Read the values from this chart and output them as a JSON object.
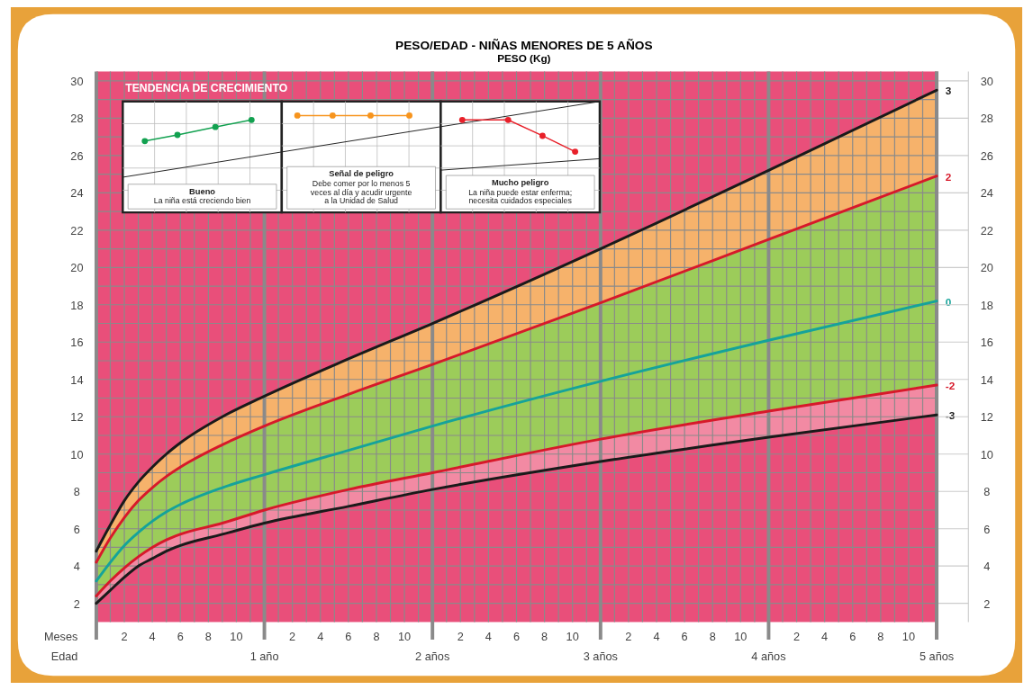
{
  "chart_data": {
    "type": "line",
    "title": "PESO/EDAD - NIÑAS MENORES DE 5 AÑOS",
    "subtitle": "PESO (Kg)",
    "xlabel": "Meses",
    "x": [
      0,
      0.0833,
      0.1667,
      0.25,
      0.3333,
      0.4167,
      0.5,
      0.75,
      1,
      1.5,
      2,
      3,
      4,
      5
    ],
    "series": [
      {
        "name": "3",
        "color": "#1a1a1a",
        "values": [
          4.8,
          6.2,
          7.5,
          8.5,
          9.3,
          10.0,
          10.6,
          12.0,
          13.1,
          15.1,
          17.0,
          21.0,
          25.2,
          29.5
        ]
      },
      {
        "name": "2",
        "color": "#d7192a",
        "values": [
          4.2,
          5.5,
          6.6,
          7.5,
          8.2,
          8.8,
          9.3,
          10.5,
          11.5,
          13.2,
          14.8,
          18.1,
          21.5,
          24.9
        ],
        "lower": [
          4.2,
          5.5,
          6.6,
          7.5,
          8.2,
          8.8,
          9.3,
          10.5,
          11.5,
          13.2,
          14.8,
          18.1,
          21.5,
          24.9
        ],
        "upper": [
          4.8,
          6.2,
          7.5,
          8.5,
          9.3,
          10.0,
          10.6,
          12.0,
          13.1,
          15.1,
          17.0,
          21.0,
          25.2,
          29.5
        ]
      },
      {
        "name": "0",
        "color": "#15a39a",
        "values": [
          3.2,
          4.2,
          5.1,
          5.8,
          6.4,
          6.9,
          7.3,
          8.2,
          8.9,
          10.2,
          11.5,
          13.9,
          16.1,
          18.2
        ],
        "lower": [
          2.4,
          3.2,
          3.9,
          4.5,
          5.0,
          5.4,
          5.7,
          6.3,
          7.0,
          8.1,
          9.0,
          10.8,
          12.3,
          13.7
        ],
        "upper": [
          4.2,
          5.5,
          6.6,
          7.5,
          8.2,
          8.8,
          9.3,
          10.5,
          11.5,
          13.2,
          14.8,
          18.1,
          21.5,
          24.9
        ]
      },
      {
        "name": "-2",
        "color": "#d7192a",
        "values": [
          2.4,
          3.2,
          3.9,
          4.5,
          5.0,
          5.4,
          5.7,
          6.3,
          7.0,
          8.1,
          9.0,
          10.8,
          12.3,
          13.7
        ],
        "lower": [
          2.0,
          2.7,
          3.4,
          4.0,
          4.4,
          4.8,
          5.1,
          5.7,
          6.3,
          7.2,
          8.1,
          9.6,
          10.9,
          12.1
        ],
        "upper": [
          2.4,
          3.2,
          3.9,
          4.5,
          5.0,
          5.4,
          5.7,
          6.3,
          7.0,
          8.1,
          9.0,
          10.8,
          12.3,
          13.7
        ]
      },
      {
        "name": "-3",
        "color": "#1a1a1a",
        "values": [
          2.0,
          2.7,
          3.4,
          4.0,
          4.4,
          4.8,
          5.1,
          5.7,
          6.3,
          7.2,
          8.1,
          9.6,
          10.9,
          12.1
        ]
      }
    ],
    "xlim": [
      0,
      5
    ],
    "xticks": [
      {
        "value": 0.0833,
        "label": null
      },
      {
        "value": 0.1667,
        "label": null
      },
      {
        "value": 0.25,
        "label": null
      },
      {
        "value": 0.3333,
        "label": null
      },
      {
        "value": 0.4167,
        "label": null
      },
      {
        "value": 0.5,
        "label": null
      },
      {
        "value": 0.5833,
        "label": null
      },
      {
        "value": 0.6667,
        "label": null
      },
      {
        "value": 0.75,
        "label": null
      },
      {
        "value": 0.8333,
        "label": null
      },
      {
        "value": 0.9167,
        "label": null
      },
      {
        "value": 1,
        "label": "1 año"
      },
      {
        "value": 1.0833,
        "label": null
      },
      {
        "value": 1.1667,
        "label": null
      },
      {
        "value": 1.25,
        "label": null
      },
      {
        "value": 1.3333,
        "label": null
      },
      {
        "value": 1.4167,
        "label": null
      },
      {
        "value": 1.5,
        "label": null
      },
      {
        "value": 1.5833,
        "label": null
      },
      {
        "value": 1.6667,
        "label": null
      },
      {
        "value": 1.75,
        "label": null
      },
      {
        "value": 1.8333,
        "label": null
      },
      {
        "value": 1.9167,
        "label": null
      },
      {
        "value": 2,
        "label": "2 años"
      },
      {
        "value": 2.0833,
        "label": null
      },
      {
        "value": 2.1667,
        "label": null
      },
      {
        "value": 2.25,
        "label": null
      },
      {
        "value": 2.3333,
        "label": null
      },
      {
        "value": 2.4167,
        "label": null
      },
      {
        "value": 2.5,
        "label": null
      },
      {
        "value": 2.5833,
        "label": null
      },
      {
        "value": 2.6667,
        "label": null
      },
      {
        "value": 2.75,
        "label": null
      },
      {
        "value": 2.8333,
        "label": null
      },
      {
        "value": 2.9167,
        "label": null
      },
      {
        "value": 3,
        "label": "3 años"
      },
      {
        "value": 3.0833,
        "label": null
      },
      {
        "value": 3.1667,
        "label": null
      },
      {
        "value": 3.25,
        "label": null
      },
      {
        "value": 3.3333,
        "label": null
      },
      {
        "value": 3.4167,
        "label": null
      },
      {
        "value": 3.5,
        "label": null
      },
      {
        "value": 3.5833,
        "label": null
      },
      {
        "value": 3.6667,
        "label": null
      },
      {
        "value": 3.75,
        "label": null
      },
      {
        "value": 3.8333,
        "label": null
      },
      {
        "value": 3.9167,
        "label": null
      },
      {
        "value": 4,
        "label": "4 años"
      },
      {
        "value": 4.0833,
        "label": null
      },
      {
        "value": 4.1667,
        "label": null
      },
      {
        "value": 4.25,
        "label": null
      },
      {
        "value": 4.3333,
        "label": null
      },
      {
        "value": 4.4167,
        "label": null
      },
      {
        "value": 4.5,
        "label": null
      },
      {
        "value": 4.5833,
        "label": null
      },
      {
        "value": 4.6667,
        "label": null
      },
      {
        "value": 4.75,
        "label": null
      },
      {
        "value": 4.8333,
        "label": null
      },
      {
        "value": 4.9167,
        "label": null
      },
      {
        "value": 5,
        "label": "5 años"
      }
    ],
    "ylim": [
      1,
      30.5
    ],
    "yticks": [
      2,
      {
        "value": 3,
        "label": null
      },
      4,
      {
        "value": 5,
        "label": null
      },
      6,
      {
        "value": 7,
        "label": null
      },
      8,
      {
        "value": 9,
        "label": null
      },
      10,
      {
        "value": 11,
        "label": null
      },
      12,
      {
        "value": 13,
        "label": null
      },
      14,
      {
        "value": 15,
        "label": null
      },
      16,
      {
        "value": 17,
        "label": null
      },
      18,
      {
        "value": 19,
        "label": null
      },
      20,
      {
        "value": 21,
        "label": null
      },
      22,
      {
        "value": 23,
        "label": null
      },
      24,
      {
        "value": 25,
        "label": null
      },
      26,
      {
        "value": 27,
        "label": null
      },
      28,
      {
        "value": 29,
        "label": null
      },
      30
    ],
    "y2lim": [
      1,
      30.5
    ],
    "y2ticks": [
      2,
      4,
      6,
      8,
      10,
      12,
      14,
      16,
      18,
      20,
      22,
      24,
      26,
      28,
      30
    ],
    "grid": true,
    "annotations": [
      "TENDENCIA DE CRECIMIENTO",
      "Bueno",
      "La niña está creciendo bien",
      "Señal de peligro",
      "Debe comer por lo menos 5 veces al día y acudir urgente a la Unidad de Salud",
      "Mucho peligro",
      "La niña puede estar enferma; necesita cuidados especiales",
      "Edad",
      "2",
      "4",
      "6",
      "8",
      "10",
      "2",
      "4",
      "6",
      "8",
      "10",
      "2",
      "4",
      "6",
      "8",
      "10",
      "2",
      "4",
      "6",
      "8",
      "10",
      "2",
      "4",
      "6",
      "8",
      "10"
    ]
  }
}
